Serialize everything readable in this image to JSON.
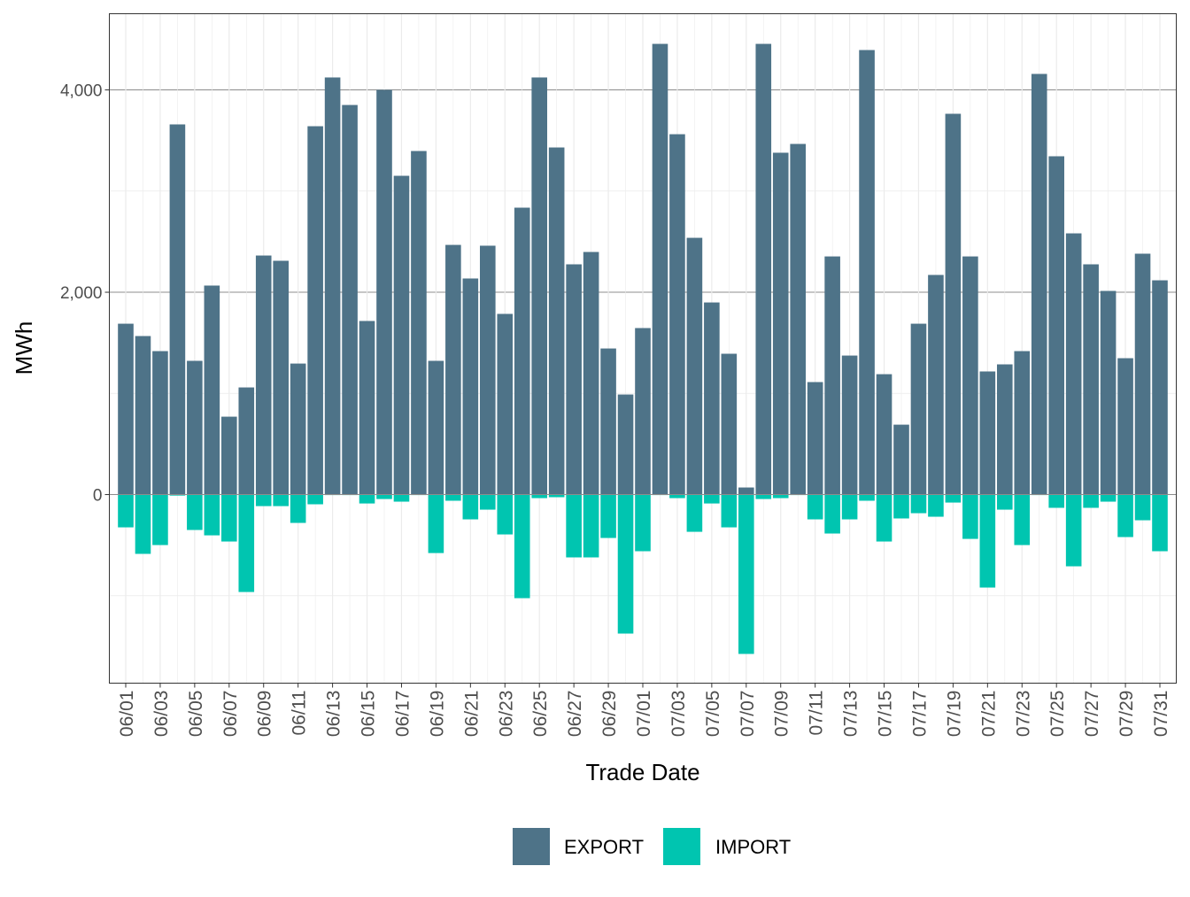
{
  "chart_data": {
    "type": "bar",
    "stacked": "diverging",
    "title": "",
    "xlabel": "Trade Date",
    "ylabel": "MWh",
    "ylim": [
      -1864,
      4753
    ],
    "yticks": [
      0,
      2000,
      4000
    ],
    "ytick_labels": [
      "0",
      "2,000",
      "4,000"
    ],
    "grid": true,
    "legend_position": "bottom",
    "categories": [
      "06/01",
      "06/02",
      "06/03",
      "06/04",
      "06/05",
      "06/06",
      "06/07",
      "06/08",
      "06/09",
      "06/10",
      "06/11",
      "06/12",
      "06/13",
      "06/14",
      "06/15",
      "06/16",
      "06/17",
      "06/18",
      "06/19",
      "06/20",
      "06/21",
      "06/22",
      "06/23",
      "06/24",
      "06/25",
      "06/26",
      "06/27",
      "06/28",
      "06/29",
      "06/30",
      "07/01",
      "07/02",
      "07/03",
      "07/04",
      "07/05",
      "07/06",
      "07/07",
      "07/08",
      "07/09",
      "07/10",
      "07/11",
      "07/12",
      "07/13",
      "07/14",
      "07/15",
      "07/16",
      "07/17",
      "07/18",
      "07/19",
      "07/20",
      "07/21",
      "07/22",
      "07/23",
      "07/24",
      "07/25",
      "07/26",
      "07/27",
      "07/28",
      "07/29",
      "07/30",
      "07/31"
    ],
    "series": [
      {
        "name": "EXPORT",
        "color": "#4e7388",
        "values": [
          1689,
          1567,
          1418,
          3659,
          1322,
          2066,
          770,
          1059,
          2363,
          2311,
          1295,
          3641,
          4123,
          3851,
          1716,
          4000,
          3151,
          3396,
          1322,
          2468,
          2136,
          2460,
          1786,
          2836,
          4123,
          3431,
          2276,
          2398,
          1444,
          989,
          1646,
          4455,
          3562,
          2538,
          1899,
          1392,
          70,
          4455,
          3379,
          3466,
          1112,
          2354,
          1374,
          4394,
          1190,
          691,
          1689,
          2171,
          3764,
          2354,
          1217,
          1287,
          1418,
          4158,
          3344,
          2582,
          2276,
          2013,
          1348,
          2381,
          2118
        ]
      },
      {
        "name": "IMPORT",
        "color": "#00c5b0",
        "values": [
          -324,
          -586,
          -499,
          -10,
          -350,
          -403,
          -464,
          -963,
          -114,
          -114,
          -280,
          -96,
          -5,
          -5,
          -88,
          -44,
          -70,
          -5,
          -578,
          -61,
          -245,
          -149,
          -394,
          -1024,
          -35,
          -26,
          -621,
          -621,
          -429,
          -1374,
          -560,
          -5,
          -35,
          -368,
          -88,
          -324,
          -1575,
          -44,
          -35,
          -5,
          -245,
          -385,
          -245,
          -61,
          -464,
          -236,
          -184,
          -219,
          -79,
          -438,
          -919,
          -149,
          -499,
          -5,
          -131,
          -709,
          -131,
          -70,
          -420,
          -254,
          -560
        ]
      }
    ]
  }
}
